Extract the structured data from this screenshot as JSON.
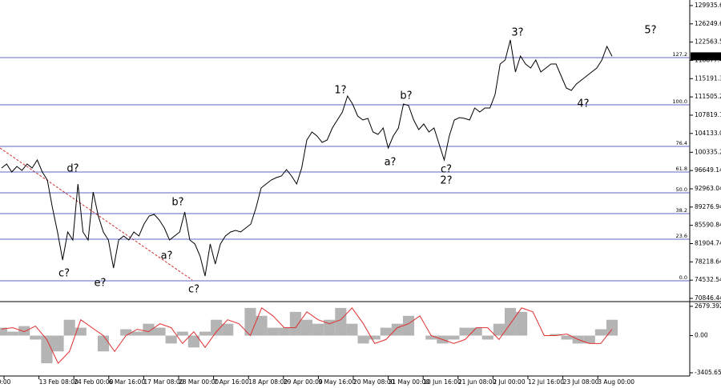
{
  "chart_data": [
    {
      "type": "line",
      "color": "#000000",
      "values": [
        97160,
        97967,
        96353,
        97483,
        96675,
        97967,
        97160,
        98774,
        96353,
        94738,
        89088,
        84245,
        78595,
        84245,
        82631,
        93931,
        84245,
        82631,
        92317,
        87474,
        84245,
        82631,
        76981,
        82631,
        83438,
        82631,
        84245,
        83438,
        85860,
        87474,
        87797,
        86667,
        85052,
        82631,
        83438,
        84245,
        88281,
        82631,
        81824,
        79402,
        75367,
        81824,
        77788,
        81824,
        83438,
        84245,
        84568,
        84245,
        85052,
        85860,
        89088,
        93124,
        93931,
        94738,
        95223,
        95545,
        96837,
        95545,
        93931,
        97160,
        102810,
        104424,
        103617,
        102325,
        102810,
        105231,
        106845,
        108460,
        111688,
        110074,
        107653,
        106845,
        107168,
        104424,
        103940,
        105231,
        101195,
        103617,
        105231,
        110074,
        109751,
        106845,
        104908,
        106038,
        104424,
        105231,
        102003,
        98774,
        103617,
        106845,
        107330,
        107168,
        106845,
        109267,
        108460,
        109267,
        109267,
        112011,
        118146,
        118953,
        122988,
        116531,
        119760,
        118146,
        117338,
        118953,
        116531,
        117338,
        118146,
        118146,
        115724,
        113303,
        112818,
        114110,
        114917,
        115724,
        116531,
        117338,
        118953,
        121697,
        119688.48
      ],
      "ylim": [
        70200,
        131060
      ],
      "yticks": [
        129935.64,
        126249.64,
        122563.54,
        118877.44,
        115191.34,
        111505.24,
        107819.14,
        104133.04,
        100335.24,
        96649.14,
        92963.04,
        89276.94,
        85590.84,
        81904.74,
        78218.64,
        74532.54,
        70846.44
      ],
      "last_price": 119688.48,
      "level_color": "#2a35b0",
      "levels": [
        {
          "label": "127.2",
          "value": 119437
        },
        {
          "label": "100.0",
          "value": 109913
        },
        {
          "label": "76.4",
          "value": 101520
        },
        {
          "label": "61.8",
          "value": 96353
        },
        {
          "label": "50.0",
          "value": 92157
        },
        {
          "label": "38.2",
          "value": 87958
        },
        {
          "label": "23.6",
          "value": 82793
        },
        {
          "label": "0.0",
          "value": 74399
        }
      ],
      "annotations": [
        {
          "text": "d?",
          "color": "#1f2fa8"
        },
        {
          "text": "c?",
          "color": "#1f2fa8"
        },
        {
          "text": "e?",
          "color": "#1f2fa8"
        },
        {
          "text": "b?",
          "color": "#1f2fa8"
        },
        {
          "text": "a?",
          "color": "#1f2fa8"
        },
        {
          "text": "c?",
          "color": "#1f2fa8"
        },
        {
          "text": "1?",
          "color": "#1f2fa8"
        },
        {
          "text": "b?",
          "color": "#c8302a"
        },
        {
          "text": "a?",
          "color": "#c8302a"
        },
        {
          "text": "c?",
          "color": "#c8302a"
        },
        {
          "text": "2?",
          "color": "#1f2fa8"
        },
        {
          "text": "3?",
          "color": "#1f2fa8"
        },
        {
          "text": "4?",
          "color": "#1f2fa8"
        },
        {
          "text": "5?",
          "color": "#1f2fa8"
        }
      ],
      "x_labels": [
        "0:00",
        "13 Feb 08:00",
        "24 Feb 00:00",
        "6 Mar 16:00",
        "17 Mar 08:00",
        "28 Mar 00:00",
        "7 Apr 16:00",
        "18 Apr 08:00",
        "29 Apr 00:00",
        "9 May 16:00",
        "20 May 08:00",
        "31 May 00:00",
        "10 Jun 16:00",
        "21 Jun 08:00",
        "2 Jul 00:00",
        "12 Jul 16:00",
        "23 Jul 08:00",
        "3 Aug 00:00"
      ]
    },
    {
      "type": "oscillator",
      "histogram": {
        "color": "#b4b4b4",
        "values": [
          724,
          362,
          869,
          -362,
          -2534,
          -1448,
          1448,
          724,
          0,
          -1448,
          0,
          579,
          362,
          1086,
          724,
          -724,
          362,
          -1086,
          362,
          1448,
          1086,
          0,
          2534,
          1810,
          724,
          724,
          2172,
          1448,
          1086,
          1448,
          2534,
          1086,
          -724,
          -362,
          724,
          1086,
          1810,
          0,
          -362,
          -724,
          -362,
          724,
          724,
          -362,
          1086,
          2534,
          2172,
          0,
          0,
          145,
          -362,
          -724,
          -724,
          579,
          1448
        ]
      },
      "signal": {
        "color": "#e03030",
        "values": [
          600,
          724,
          362,
          869,
          -362,
          -2534,
          -1448,
          1448,
          724,
          0,
          -1448,
          0,
          579,
          362,
          1086,
          724,
          -724,
          362,
          -1086,
          362,
          1448,
          1086,
          0,
          2534,
          1810,
          724,
          724,
          2172,
          1448,
          1086,
          1448,
          2534,
          1086,
          -724,
          -362,
          724,
          1086,
          1810,
          0,
          -362,
          -724,
          -362,
          724,
          724,
          -362,
          1086,
          2534,
          2172,
          0,
          0,
          145,
          -362,
          -724,
          -724,
          579
        ]
      },
      "ylim": [
        -3700,
        3040
      ],
      "yticks": [
        2679.392,
        {
          "value": 0,
          "label": "0.00"
        },
        -3405.653
      ]
    }
  ]
}
